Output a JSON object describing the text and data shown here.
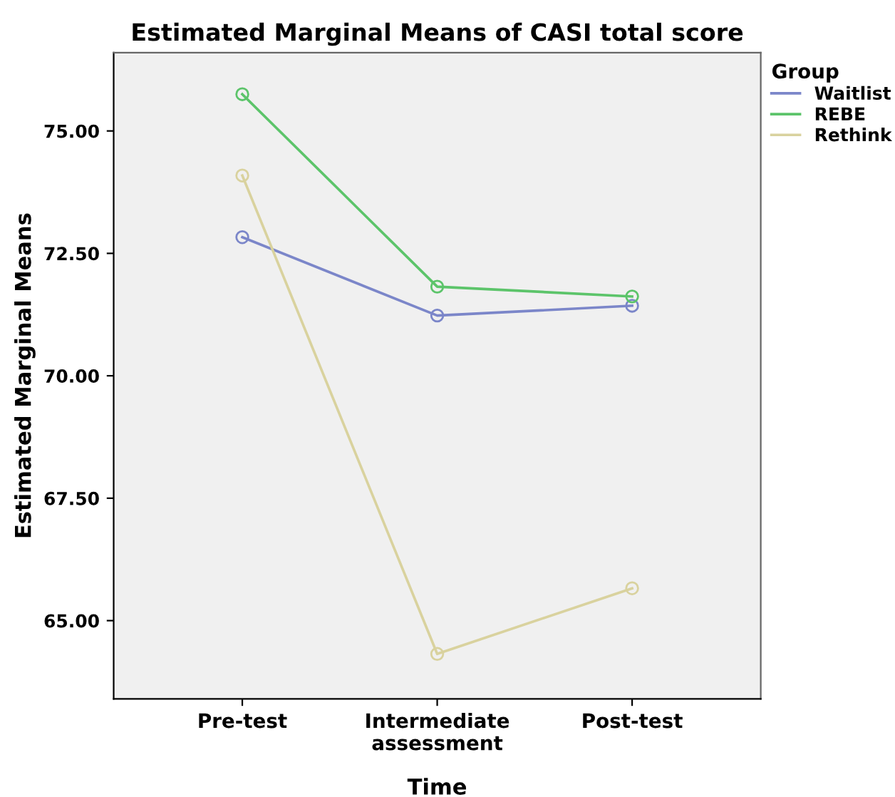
{
  "chart_data": {
    "type": "line",
    "title": "Estimated Marginal Means of CASI total score",
    "xlabel": "Time",
    "ylabel": "Estimated Marginal Means",
    "legend_title": "Group",
    "categories": [
      "Pre-test",
      "Intermediate\nassessment",
      "Post-test"
    ],
    "series": [
      {
        "name": "Waitlist",
        "color": "#7b86c9",
        "values": [
          72.83,
          71.23,
          71.43
        ]
      },
      {
        "name": "REBE",
        "color": "#5cc46a",
        "values": [
          75.75,
          71.82,
          71.62
        ]
      },
      {
        "name": "Rethink",
        "color": "#d9d29e",
        "values": [
          74.09,
          64.32,
          65.66
        ]
      }
    ],
    "ylim": [
      63.4,
      76.6
    ],
    "yticks": [
      {
        "value": 65,
        "label": "65.00"
      },
      {
        "value": 67.5,
        "label": "67.50"
      },
      {
        "value": 70,
        "label": "70.00"
      },
      {
        "value": 72.5,
        "label": "72.50"
      },
      {
        "value": 75,
        "label": "75.00"
      }
    ],
    "grid": false,
    "legend": "top right",
    "marker": "circle",
    "line_style": "solid"
  }
}
